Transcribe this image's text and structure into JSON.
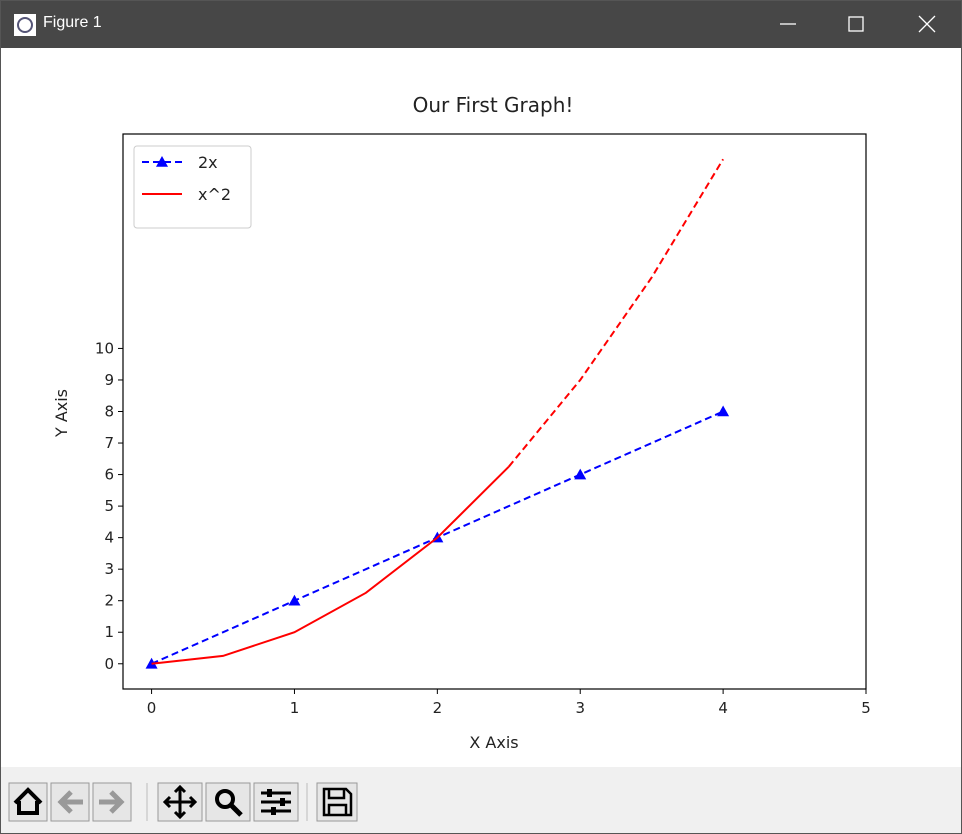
{
  "window": {
    "title": "Figure 1"
  },
  "chart_data": {
    "type": "line",
    "title": "Our First Graph!",
    "x_label": "X Axis",
    "y_label": "Y Axis",
    "xlim": [
      -0.2,
      5
    ],
    "ylim": [
      -0.8,
      16.8
    ],
    "xticks": [
      0,
      1,
      2,
      3,
      4,
      5
    ],
    "yticks": [
      0,
      1,
      2,
      3,
      4,
      5,
      6,
      7,
      8,
      9,
      10
    ],
    "legend": "upper left",
    "series": [
      {
        "name": "2x",
        "color": "#0000ff",
        "linestyle": "dashed",
        "marker": "triangle",
        "x": [
          0,
          1,
          2,
          3,
          4
        ],
        "values": [
          0,
          2,
          4,
          6,
          8
        ]
      },
      {
        "name": "x^2",
        "color": "#ff0000",
        "linestyle": "solid",
        "x": [
          0,
          0.5,
          1,
          1.5,
          2,
          2.5
        ],
        "values": [
          0,
          0.25,
          1,
          2.25,
          4,
          6.25
        ]
      },
      {
        "color": "#ff0000",
        "linestyle": "dashed",
        "x": [
          2.5,
          3,
          3.5,
          4
        ],
        "values": [
          6.25,
          9,
          12.25,
          16
        ]
      }
    ]
  }
}
